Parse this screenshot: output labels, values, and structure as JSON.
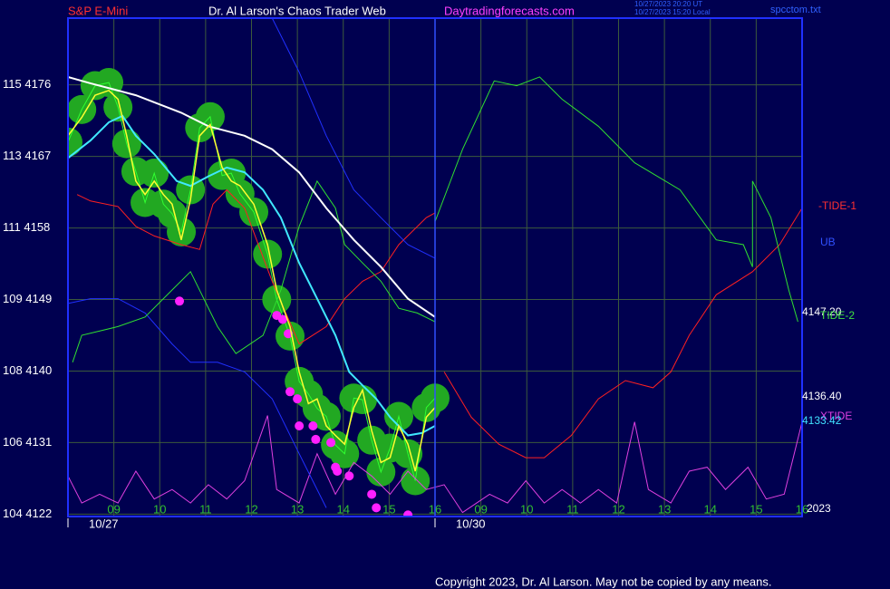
{
  "chart_data": {
    "type": "line",
    "title": "Dr. Al Larson's Chaos Trader Web",
    "symbol": "S&P E-Mini",
    "site": "Daytradingforecasts.com",
    "timestamps": [
      "10/27/2023 20:20 UT",
      "10/27/2023 15:20 Local"
    ],
    "file": "spcctom.txt",
    "copyright": "Copyright 2023, Dr. Al Larson. May not be copied by any means.",
    "dates": [
      "10/27",
      "10/30"
    ],
    "annotations": [
      {
        "text": "-TIDE-1",
        "color": "#ff3030"
      },
      {
        "text": "UB",
        "color": "#3050ff"
      },
      {
        "text": "4147.20",
        "color": "#ffffff"
      },
      {
        "text": "TIDE-2",
        "color": "#40e040"
      },
      {
        "text": "4136.40",
        "color": "#ffffff"
      },
      {
        "text": "XTIDE",
        "color": "#e040e0"
      },
      {
        "text": "4133.42",
        "color": "#40e0ff"
      },
      {
        "text": "2023",
        "color": "#ffffff"
      }
    ],
    "xlim": [
      0,
      16
    ],
    "xticks": [
      {
        "value": 1,
        "label": "09"
      },
      {
        "value": 2,
        "label": "10"
      },
      {
        "value": 3,
        "label": "11"
      },
      {
        "value": 4,
        "label": "12"
      },
      {
        "value": 5,
        "label": "13"
      },
      {
        "value": 6,
        "label": "14"
      },
      {
        "value": 7,
        "label": "15"
      },
      {
        "value": 8,
        "label": "16"
      },
      {
        "value": 9,
        "label": "09"
      },
      {
        "value": 10,
        "label": "10"
      },
      {
        "value": 11,
        "label": "11"
      },
      {
        "value": 12,
        "label": "12"
      },
      {
        "value": 13,
        "label": "13"
      },
      {
        "value": 14,
        "label": "14"
      },
      {
        "value": 15,
        "label": "15"
      },
      {
        "value": 16,
        "label": "16"
      }
    ],
    "ylim": [
      4121.7,
      4184.4
    ],
    "yticks": [
      {
        "value": 4122,
        "label": "104 4122"
      },
      {
        "value": 4131,
        "label": "106 4131"
      },
      {
        "value": 4140,
        "label": "108 4140"
      },
      {
        "value": 4149,
        "label": "109 4149"
      },
      {
        "value": 4158,
        "label": "111 4158"
      },
      {
        "value": 4167,
        "label": "113 4167"
      },
      {
        "value": 4176,
        "label": "115 4176"
      }
    ],
    "grid": true,
    "series": [
      {
        "style": "blobs",
        "color": "#22a822",
        "x": [
          0,
          0.3,
          0.59,
          0.89,
          1.09,
          1.28,
          1.48,
          1.68,
          1.88,
          2.08,
          2.27,
          2.47,
          2.67,
          2.87,
          3.1,
          3.36,
          3.56,
          3.75,
          4.05,
          4.35,
          4.55,
          4.84,
          5.04,
          5.24,
          5.43,
          5.63,
          5.83,
          6.03,
          6.23,
          6.42,
          6.62,
          6.82,
          7.02,
          7.21,
          7.41,
          7.57,
          7.81,
          8.0
        ],
        "values": [
          4168.8,
          4172.9,
          4175.9,
          4176.3,
          4173.2,
          4168.6,
          4165.1,
          4161.2,
          4164.9,
          4161.0,
          4159.8,
          4157.5,
          4162.8,
          4170.6,
          4172.0,
          4164.6,
          4164.9,
          4162.3,
          4160.0,
          4154.7,
          4149.0,
          4144.4,
          4138.7,
          4137.1,
          4135.3,
          4134.3,
          4130.7,
          4129.6,
          4136.6,
          4136.4,
          4131.3,
          4127.3,
          4130.3,
          4134.3,
          4129.6,
          4126.2,
          4135.4,
          4136.6
        ]
      },
      {
        "style": "line",
        "color": "#30ff30",
        "width": 1,
        "x": [
          0,
          0.3,
          0.59,
          0.89,
          1.09,
          1.28,
          1.48,
          1.68,
          1.88,
          2.08,
          2.27,
          2.47,
          2.67,
          2.87,
          3.1,
          3.36,
          3.56,
          3.75,
          4.05,
          4.35,
          4.55,
          4.84,
          5.04,
          5.24,
          5.43,
          5.63,
          5.83,
          6.03,
          6.23,
          6.42,
          6.62,
          6.82,
          7.02,
          7.21,
          7.41,
          7.57,
          7.81,
          8.0
        ],
        "values": [
          4168.8,
          4172.9,
          4175.9,
          4176.3,
          4173.2,
          4168.6,
          4165.1,
          4161.2,
          4164.9,
          4161.0,
          4159.8,
          4157.5,
          4162.8,
          4170.6,
          4172.0,
          4164.6,
          4164.9,
          4162.3,
          4160.0,
          4154.7,
          4149.0,
          4144.4,
          4138.7,
          4137.1,
          4135.3,
          4134.3,
          4130.7,
          4129.6,
          4136.6,
          4136.4,
          4131.3,
          4127.3,
          4130.3,
          4134.3,
          4129.6,
          4126.2,
          4135.4,
          4136.6
        ]
      },
      {
        "style": "dots",
        "color": "#ff20ff",
        "x": [
          2.43,
          4.55,
          4.68,
          4.8,
          4.84,
          5.0,
          5.04,
          5.34,
          5.4,
          5.73,
          5.83,
          5.87,
          6.13,
          6.62,
          6.72,
          7.41
        ],
        "values": [
          4148.8,
          4147.0,
          4146.5,
          4144.7,
          4137.4,
          4136.5,
          4133.1,
          4133.1,
          4131.4,
          4131.0,
          4127.9,
          4127.4,
          4126.8,
          4124.5,
          4122.8,
          4121.9
        ]
      },
      {
        "style": "line",
        "color": "#e040e0",
        "width": 1,
        "x": [
          0,
          0.3,
          0.69,
          1.09,
          1.48,
          1.88,
          2.27,
          2.67,
          3.06,
          3.46,
          3.85,
          4.35,
          4.55,
          5.04,
          5.43,
          5.83,
          6.23,
          6.62,
          7.02,
          7.41,
          7.81,
          8.2,
          8.6,
          9.19,
          9.58,
          9.98,
          10.38,
          10.77,
          11.17,
          11.56,
          11.96,
          12.35,
          12.65,
          13.14,
          13.54,
          13.93,
          14.33,
          14.82,
          15.22,
          15.61,
          16.0
        ],
        "values": [
          4126.8,
          4123.4,
          4124.5,
          4123.4,
          4127.4,
          4123.9,
          4125.1,
          4123.4,
          4125.7,
          4123.9,
          4126.2,
          4134.4,
          4125.1,
          4123.4,
          4129.6,
          4124.5,
          4128.5,
          4126.8,
          4124.5,
          4127.4,
          4125.1,
          4125.7,
          4122.2,
          4124.5,
          4123.4,
          4126.2,
          4123.4,
          4125.1,
          4123.4,
          4125.1,
          4123.4,
          4133.6,
          4125.1,
          4123.4,
          4127.4,
          4127.9,
          4125.1,
          4127.9,
          4123.9,
          4124.5,
          4133.6
        ]
      },
      {
        "style": "line",
        "color": "#ff2020",
        "width": 1,
        "x": [
          0.2,
          0.49,
          1.09,
          1.48,
          1.88,
          2.47,
          2.87,
          3.16,
          3.46,
          3.85,
          4.45,
          5.04,
          5.63,
          6.03,
          6.42,
          6.82,
          7.21,
          7.81,
          8.0,
          null,
          8.2,
          8.79,
          9.39,
          9.98,
          10.38,
          10.97,
          11.56,
          12.15,
          12.75,
          13.14,
          13.54,
          14.13,
          14.92,
          15.51,
          16.0
        ],
        "values": [
          4162.2,
          4161.4,
          4160.7,
          4158.2,
          4157.0,
          4155.9,
          4155.3,
          4161.0,
          4162.8,
          4160.5,
          4151.3,
          4143.4,
          4145.6,
          4149.1,
          4151.3,
          4152.5,
          4155.9,
          4159.3,
          4159.9,
          null,
          4139.9,
          4134.2,
          4130.8,
          4129.1,
          4129.1,
          4131.9,
          4136.5,
          4138.8,
          4137.9,
          4139.9,
          4144.5,
          4149.6,
          4152.5,
          4155.9,
          4160.5
        ]
      },
      {
        "style": "line",
        "color": "#2030ff",
        "width": 1,
        "x": [
          0,
          0.49,
          1.09,
          1.68,
          2.27,
          2.67,
          3.26,
          3.85,
          4.45,
          5.04,
          5.63
        ],
        "values": [
          4148.5,
          4149.1,
          4149.1,
          4147.3,
          4143.4,
          4141.1,
          4141.1,
          4139.9,
          4136.5,
          4129.6,
          4122.8
        ]
      },
      {
        "style": "line",
        "color": "#2030ff",
        "width": 1,
        "x": [
          4.45,
          5.04,
          5.63,
          6.23,
          6.82,
          7.41,
          8.0
        ],
        "values": [
          4184.4,
          4177.6,
          4169.6,
          4162.8,
          4159.3,
          4155.9,
          4154.2
        ]
      },
      {
        "style": "line",
        "color": "#30e030",
        "width": 1,
        "x": [
          0.1,
          0.3,
          1.09,
          1.68,
          2.27,
          2.67,
          3.26,
          3.66,
          4.25,
          4.64,
          5.04,
          5.43,
          5.83,
          6.03,
          6.42,
          6.82,
          7.21,
          7.61,
          8.0,
          8.0,
          8.6,
          9.29,
          9.78,
          10.28,
          10.77,
          11.56,
          12.35,
          13.34,
          14.13,
          14.72,
          14.92,
          14.92,
          15.32,
          15.71,
          15.91
        ],
        "values": [
          4141.1,
          4144.5,
          4145.6,
          4146.8,
          4150.2,
          4152.5,
          4145.6,
          4142.2,
          4144.5,
          4150.2,
          4158.2,
          4163.9,
          4160.5,
          4155.9,
          4153.6,
          4151.3,
          4147.9,
          4147.3,
          4146.2,
          4158.8,
          4167.9,
          4176.5,
          4175.9,
          4177.0,
          4174.2,
          4170.8,
          4166.2,
          4162.8,
          4156.5,
          4155.9,
          4153.1,
          4163.9,
          4159.3,
          4150.2,
          4146.2
        ]
      },
      {
        "style": "line",
        "color": "#ffffff",
        "width": 2,
        "x": [
          0,
          0.49,
          1.48,
          2.47,
          3.06,
          3.85,
          4.45,
          5.04,
          5.63,
          6.23,
          6.82,
          7.41,
          8.0
        ],
        "values": [
          4177.0,
          4176.2,
          4174.7,
          4172.5,
          4170.8,
          4169.6,
          4167.9,
          4165.0,
          4160.5,
          4156.5,
          4153.1,
          4149.1,
          4146.8
        ]
      },
      {
        "style": "line",
        "color": "#40e8ff",
        "width": 2,
        "x": [
          0,
          0.49,
          0.89,
          1.19,
          1.48,
          1.88,
          2.37,
          2.67,
          3.06,
          3.46,
          3.85,
          4.25,
          4.64,
          5.04,
          5.43,
          5.83,
          6.13,
          6.42,
          6.72,
          7.02,
          7.41,
          7.71,
          8.0
        ],
        "values": [
          4166.8,
          4169.0,
          4171.3,
          4172.1,
          4169.6,
          4167.3,
          4163.9,
          4163.3,
          4164.5,
          4165.6,
          4165.0,
          4162.8,
          4159.3,
          4153.6,
          4149.1,
          4144.5,
          4139.9,
          4138.2,
          4136.5,
          4134.2,
          4131.9,
          4132.2,
          4133.1
        ]
      },
      {
        "style": "line",
        "color": "#ffff30",
        "width": 1.5,
        "x": [
          0,
          0.3,
          0.59,
          0.89,
          1.09,
          1.28,
          1.48,
          1.68,
          1.88,
          2.08,
          2.27,
          2.47,
          2.67,
          2.87,
          3.1,
          3.36,
          3.56,
          3.75,
          4.05,
          4.35,
          4.55,
          4.84,
          5.04,
          5.24,
          5.43,
          5.63,
          5.83,
          6.03,
          6.23,
          6.42,
          6.62,
          6.82,
          7.02,
          7.21,
          7.41,
          7.57,
          7.81,
          8.0
        ],
        "values": [
          4169.6,
          4171.9,
          4174.7,
          4175.3,
          4174.2,
          4169.6,
          4163.9,
          4162.2,
          4163.9,
          4162.2,
          4161.0,
          4156.5,
          4161.6,
          4169.6,
          4171.0,
          4165.6,
          4163.9,
          4163.3,
          4161.0,
          4155.9,
          4150.2,
          4145.6,
          4139.9,
          4135.9,
          4136.5,
          4133.1,
          4131.9,
          4130.8,
          4135.4,
          4137.6,
          4132.5,
          4128.5,
          4129.1,
          4133.1,
          4130.8,
          4127.4,
          4134.2,
          4135.4
        ]
      }
    ]
  }
}
